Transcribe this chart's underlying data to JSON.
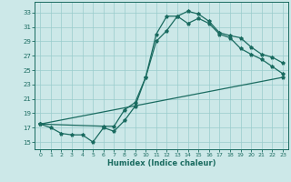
{
  "xlabel": "Humidex (Indice chaleur)",
  "bg_color": "#cce8e8",
  "grid_color": "#99cccc",
  "line_color": "#1a6b60",
  "xlim": [
    -0.5,
    23.5
  ],
  "ylim": [
    14.0,
    34.5
  ],
  "xticks": [
    0,
    1,
    2,
    3,
    4,
    5,
    6,
    7,
    8,
    9,
    10,
    11,
    12,
    13,
    14,
    15,
    16,
    17,
    18,
    19,
    20,
    21,
    22,
    23
  ],
  "yticks": [
    15,
    17,
    19,
    21,
    23,
    25,
    27,
    29,
    31,
    33
  ],
  "line1_x": [
    0,
    1,
    2,
    3,
    4,
    5,
    6,
    7,
    8,
    9,
    10,
    11,
    12,
    13,
    14,
    15,
    16,
    17,
    18,
    19,
    20,
    21,
    22,
    23
  ],
  "line1_y": [
    17.5,
    17.0,
    16.2,
    16.0,
    16.0,
    15.0,
    17.0,
    16.5,
    18.0,
    20.0,
    24.0,
    30.0,
    32.5,
    32.5,
    31.5,
    32.2,
    31.5,
    30.0,
    29.5,
    28.0,
    27.2,
    26.5,
    25.5,
    24.5
  ],
  "line2_x": [
    0,
    6,
    7,
    8,
    9,
    10,
    11,
    12,
    13,
    14,
    15,
    16,
    17,
    18,
    19,
    20,
    21,
    22,
    23
  ],
  "line2_y": [
    17.5,
    17.2,
    17.2,
    19.5,
    20.5,
    24.0,
    29.0,
    30.5,
    32.5,
    33.2,
    32.8,
    31.8,
    30.2,
    29.8,
    29.5,
    28.2,
    27.2,
    26.8,
    26.0
  ],
  "line3_x": [
    0,
    23
  ],
  "line3_y": [
    17.5,
    24.0
  ]
}
